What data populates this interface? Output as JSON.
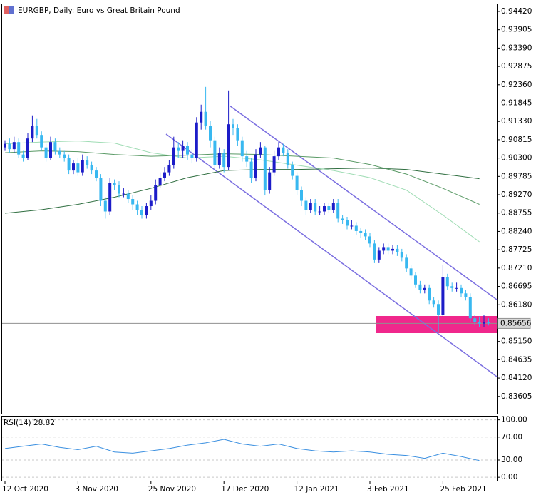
{
  "chart_data": [
    {
      "type": "candlestick",
      "title": "EURGBP, Daily:  Euro vs Great Britain Pound",
      "categories": [
        "12 Oct 2020",
        null,
        null,
        null,
        null,
        null,
        null,
        null,
        null,
        null,
        null,
        null,
        null,
        null,
        null,
        null,
        "3 Nov 2020",
        null,
        null,
        null,
        null,
        null,
        null,
        null,
        null,
        null,
        null,
        null,
        null,
        null,
        null,
        null,
        "25 Nov 2020",
        null,
        null,
        null,
        null,
        null,
        null,
        null,
        null,
        null,
        null,
        null,
        null,
        null,
        null,
        null,
        "17 Dec 2020",
        null,
        null,
        null,
        null,
        null,
        null,
        null,
        null,
        null,
        null,
        null,
        null,
        null,
        null,
        null,
        "12 Jan 2021",
        null,
        null,
        null,
        null,
        null,
        null,
        null,
        null,
        null,
        null,
        null,
        null,
        null,
        null,
        null,
        "3 Feb 2021",
        null,
        null,
        null,
        null,
        null,
        null,
        null,
        null,
        null,
        null,
        null,
        null,
        null,
        null,
        null,
        "25 Feb 2021",
        null,
        null,
        null,
        null,
        null,
        null,
        null,
        null,
        null,
        null
      ],
      "open": [
        0.906,
        0.907,
        0.9055,
        0.9075,
        0.904,
        0.903,
        0.9085,
        0.912,
        0.9095,
        0.906,
        0.903,
        0.9075,
        0.905,
        0.904,
        0.903,
        0.8995,
        0.9015,
        0.899,
        0.9025,
        0.901,
        0.8995,
        0.8975,
        0.891,
        0.888,
        0.896,
        0.8955,
        0.893,
        0.893,
        0.8915,
        0.89,
        0.8885,
        0.887,
        0.8895,
        0.891,
        0.8955,
        0.8975,
        0.899,
        0.901,
        0.906,
        0.905,
        0.9065,
        0.904,
        0.903,
        0.913,
        0.916,
        0.912,
        0.908,
        0.901,
        0.9045,
        0.9005,
        0.9125,
        0.9115,
        0.908,
        0.9035,
        0.902,
        0.8975,
        0.904,
        0.906,
        0.894,
        0.899,
        0.9035,
        0.906,
        0.9045,
        0.901,
        0.898,
        0.894,
        0.891,
        0.8885,
        0.8905,
        0.888,
        0.888,
        0.8895,
        0.8885,
        0.8905,
        0.886,
        0.8855,
        0.884,
        0.884,
        0.8825,
        0.882,
        0.881,
        0.879,
        0.8745,
        0.877,
        0.878,
        0.877,
        0.8775,
        0.8765,
        0.875,
        0.872,
        0.87,
        0.8675,
        0.866,
        0.8665,
        0.863,
        0.862,
        0.859,
        0.8695,
        0.867,
        0.8665,
        0.8665,
        0.865,
        0.864,
        0.858,
        0.857,
        0.8565,
        0.857
      ],
      "high": [
        0.908,
        0.9085,
        0.909,
        0.9085,
        0.905,
        0.91,
        0.915,
        0.914,
        0.9105,
        0.907,
        0.909,
        0.9085,
        0.906,
        0.905,
        0.904,
        0.9025,
        0.903,
        0.904,
        0.9035,
        0.902,
        0.9005,
        0.8985,
        0.892,
        0.8975,
        0.897,
        0.8965,
        0.8945,
        0.894,
        0.8925,
        0.891,
        0.8895,
        0.8905,
        0.8925,
        0.897,
        0.899,
        0.9005,
        0.9025,
        0.909,
        0.9075,
        0.908,
        0.9075,
        0.9055,
        0.9145,
        0.918,
        0.923,
        0.9135,
        0.909,
        0.906,
        0.9055,
        0.922,
        0.914,
        0.9125,
        0.909,
        0.905,
        0.903,
        0.9055,
        0.9075,
        0.9065,
        0.9005,
        0.905,
        0.9075,
        0.907,
        0.9055,
        0.902,
        0.899,
        0.895,
        0.892,
        0.8915,
        0.8915,
        0.8895,
        0.8905,
        0.8905,
        0.8915,
        0.8915,
        0.887,
        0.8865,
        0.8855,
        0.885,
        0.8835,
        0.883,
        0.882,
        0.88,
        0.878,
        0.879,
        0.879,
        0.8785,
        0.8785,
        0.8775,
        0.876,
        0.873,
        0.871,
        0.8685,
        0.8675,
        0.8675,
        0.864,
        0.863,
        0.873,
        0.8705,
        0.868,
        0.868,
        0.8675,
        0.866,
        0.865,
        0.859,
        0.8585,
        0.859,
        0.858
      ],
      "low": [
        0.905,
        0.9045,
        0.9045,
        0.903,
        0.902,
        0.9025,
        0.9075,
        0.9085,
        0.905,
        0.902,
        0.9025,
        0.904,
        0.903,
        0.902,
        0.8985,
        0.8985,
        0.898,
        0.898,
        0.9,
        0.8985,
        0.8965,
        0.8895,
        0.886,
        0.887,
        0.894,
        0.892,
        0.892,
        0.8905,
        0.8885,
        0.887,
        0.886,
        0.886,
        0.8885,
        0.89,
        0.8945,
        0.8965,
        0.898,
        0.9,
        0.903,
        0.903,
        0.9025,
        0.9015,
        0.902,
        0.911,
        0.911,
        0.906,
        0.8995,
        0.9,
        0.899,
        0.8995,
        0.9095,
        0.9065,
        0.902,
        0.9005,
        0.896,
        0.8965,
        0.903,
        0.8925,
        0.893,
        0.898,
        0.9025,
        0.9035,
        0.9,
        0.897,
        0.8925,
        0.8895,
        0.887,
        0.8875,
        0.887,
        0.887,
        0.887,
        0.8875,
        0.8875,
        0.885,
        0.8845,
        0.883,
        0.883,
        0.8815,
        0.8805,
        0.88,
        0.878,
        0.8735,
        0.8735,
        0.876,
        0.876,
        0.876,
        0.8755,
        0.874,
        0.871,
        0.869,
        0.8665,
        0.865,
        0.865,
        0.862,
        0.861,
        0.854,
        0.8585,
        0.866,
        0.8655,
        0.8655,
        0.864,
        0.863,
        0.857,
        0.856,
        0.8555,
        0.8555,
        0.856
      ],
      "close": [
        0.907,
        0.9055,
        0.9075,
        0.904,
        0.903,
        0.9085,
        0.912,
        0.9095,
        0.906,
        0.903,
        0.9075,
        0.905,
        0.904,
        0.903,
        0.8995,
        0.9015,
        0.899,
        0.9025,
        0.901,
        0.8995,
        0.8975,
        0.891,
        0.888,
        0.896,
        0.8955,
        0.893,
        0.893,
        0.8915,
        0.89,
        0.8885,
        0.887,
        0.8895,
        0.891,
        0.8955,
        0.8975,
        0.899,
        0.901,
        0.906,
        0.905,
        0.9065,
        0.904,
        0.903,
        0.913,
        0.916,
        0.912,
        0.908,
        0.901,
        0.9045,
        0.9005,
        0.9125,
        0.9115,
        0.908,
        0.9035,
        0.902,
        0.8975,
        0.904,
        0.906,
        0.894,
        0.899,
        0.9035,
        0.906,
        0.9045,
        0.901,
        0.898,
        0.894,
        0.891,
        0.8885,
        0.8905,
        0.888,
        0.888,
        0.8895,
        0.8885,
        0.8905,
        0.886,
        0.8855,
        0.884,
        0.884,
        0.8825,
        0.882,
        0.881,
        0.879,
        0.8745,
        0.877,
        0.878,
        0.877,
        0.8775,
        0.8765,
        0.875,
        0.872,
        0.87,
        0.8675,
        0.866,
        0.8665,
        0.863,
        0.862,
        0.859,
        0.8695,
        0.867,
        0.8665,
        0.8665,
        0.865,
        0.864,
        0.858,
        0.857,
        0.8565,
        0.857,
        0.8566
      ],
      "up_color": "#1c1cc8",
      "down_color": "#38b8f0",
      "series": [
        {
          "color": "#2f6e40",
          "x": [
            0,
            8,
            16,
            24,
            32,
            40,
            48,
            56,
            64,
            72,
            80,
            88,
            96,
            104
          ],
          "values": [
            0.8875,
            0.8885,
            0.89,
            0.892,
            0.8945,
            0.8975,
            0.8995,
            0.8998,
            0.8998,
            0.9,
            0.9002,
            0.8998,
            0.8985,
            0.8972
          ]
        },
        {
          "color": "#5a9a66",
          "x": [
            0,
            8,
            16,
            24,
            32,
            40,
            48,
            56,
            64,
            72,
            80,
            88,
            96,
            104
          ],
          "values": [
            0.9045,
            0.905,
            0.9048,
            0.904,
            0.9035,
            0.9038,
            0.9042,
            0.904,
            0.9035,
            0.903,
            0.9012,
            0.8985,
            0.8945,
            0.89
          ]
        },
        {
          "color": "#9fdcb4",
          "x": [
            0,
            8,
            16,
            24,
            32,
            40,
            48,
            56,
            64,
            72,
            80,
            88,
            96,
            104
          ],
          "values": [
            0.907,
            0.9075,
            0.9078,
            0.9072,
            0.9045,
            0.903,
            0.9035,
            0.9025,
            0.901,
            0.8995,
            0.8975,
            0.894,
            0.887,
            0.8795
          ]
        }
      ],
      "current_price": 0.85656,
      "ylim": [
        0.8312,
        0.9464
      ],
      "yticks": [
        {
          "value": 0.9442,
          "label": "0.94420"
        },
        {
          "value": 0.93905,
          "label": "0.93905"
        },
        {
          "value": 0.9339,
          "label": "0.93390"
        },
        {
          "value": 0.92875,
          "label": "0.92875"
        },
        {
          "value": 0.9236,
          "label": "0.92360"
        },
        {
          "value": 0.91845,
          "label": "0.91845"
        },
        {
          "value": 0.9133,
          "label": "0.91330"
        },
        {
          "value": 0.90815,
          "label": "0.90815"
        },
        {
          "value": 0.903,
          "label": "0.90300"
        },
        {
          "value": 0.89785,
          "label": "0.89785"
        },
        {
          "value": 0.8927,
          "label": "0.89270"
        },
        {
          "value": 0.88755,
          "label": "0.88755"
        },
        {
          "value": 0.8824,
          "label": "0.88240"
        },
        {
          "value": 0.87725,
          "label": "0.87725"
        },
        {
          "value": 0.8721,
          "label": "0.87210"
        },
        {
          "value": 0.86695,
          "label": "0.86695"
        },
        {
          "value": 0.8618,
          "label": "0.86180"
        },
        {
          "value": 0.8515,
          "label": "0.85150"
        },
        {
          "value": 0.84635,
          "label": "0.84635"
        },
        {
          "value": 0.8412,
          "label": "0.84120"
        },
        {
          "value": 0.83605,
          "label": "0.83605"
        }
      ]
    },
    {
      "type": "line",
      "title": "RSI(14) 28.82",
      "series": [
        {
          "color": "#3a8fe0",
          "x": [
            0,
            4,
            8,
            12,
            16,
            20,
            24,
            28,
            32,
            36,
            40,
            44,
            48,
            52,
            56,
            60,
            64,
            68,
            72,
            76,
            80,
            84,
            88,
            92,
            96,
            100,
            104
          ],
          "values": [
            50,
            54,
            58,
            52,
            48,
            54,
            44,
            42,
            46,
            50,
            56,
            60,
            66,
            58,
            54,
            58,
            50,
            46,
            44,
            46,
            44,
            40,
            38,
            33,
            42,
            36,
            29
          ]
        }
      ],
      "ylim": [
        -6,
        107
      ],
      "yticks": [
        {
          "value": 100,
          "label": "100.00"
        },
        {
          "value": 70,
          "label": "70.00"
        },
        {
          "value": 30,
          "label": "30.00"
        },
        {
          "value": 0,
          "label": "0.00"
        }
      ]
    }
  ]
}
